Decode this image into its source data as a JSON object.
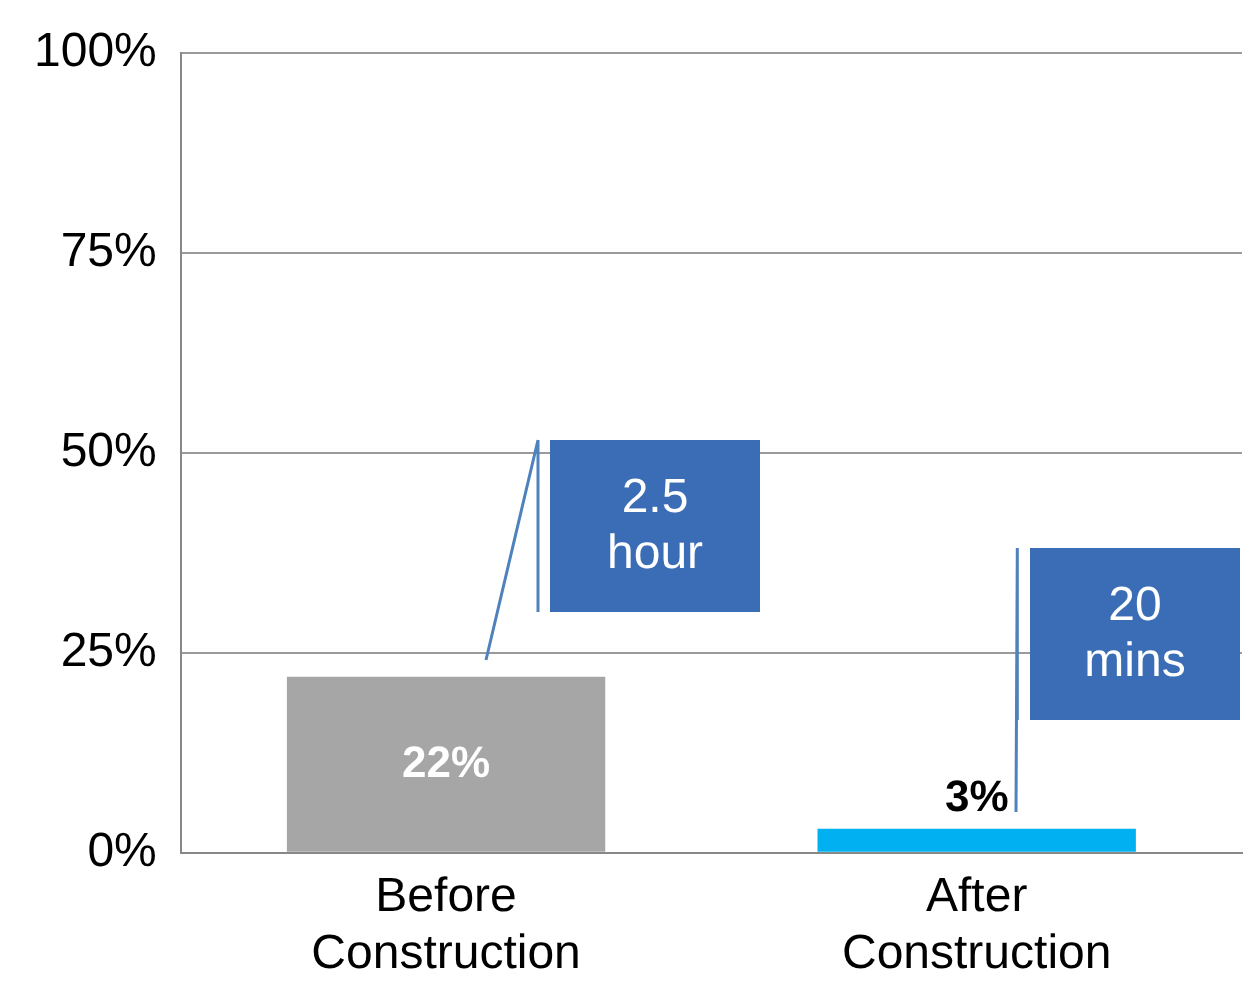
{
  "chart_data": {
    "type": "bar",
    "categories": [
      "Before Construction",
      "After Construction"
    ],
    "values": [
      22,
      3
    ],
    "colors": [
      "#a6a6a6",
      "#00b0f0"
    ],
    "value_labels": [
      "22%",
      "3%"
    ],
    "ylim": [
      0,
      100
    ],
    "yticks": [
      {
        "value": 0,
        "label": "0%"
      },
      {
        "value": 25,
        "label": "25%"
      },
      {
        "value": 50,
        "label": "50%"
      },
      {
        "value": 75,
        "label": "75%"
      },
      {
        "value": 100,
        "label": "100%"
      }
    ],
    "grid": "y",
    "legend": false,
    "annotations": [
      "2.5 hour",
      "20 mins"
    ]
  }
}
